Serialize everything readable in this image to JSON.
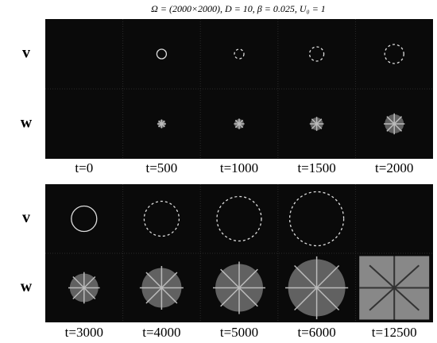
{
  "title": "Ω = (2000×2000), D = 10, β = 0.025, U₀ = 1",
  "panels": [
    {
      "rows": [
        "v",
        "w"
      ],
      "times": [
        "t=0",
        "t=500",
        "t=1000",
        "t=1500",
        "t=2000"
      ]
    },
    {
      "rows": [
        "v",
        "w"
      ],
      "times": [
        "t=3000",
        "t=4000",
        "t=5000",
        "t=6000",
        "t=12500"
      ]
    }
  ]
}
